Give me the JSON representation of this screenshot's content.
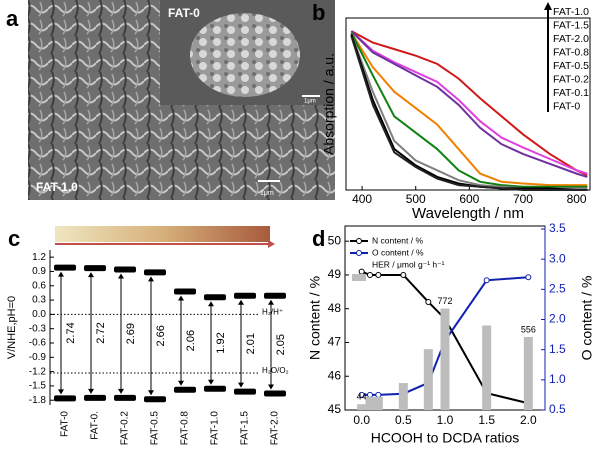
{
  "panel_labels": [
    "a",
    "b",
    "c",
    "d"
  ],
  "image": {
    "labels": [
      "FAT-0",
      "FAT-1.0"
    ],
    "scale_bars": [
      "1μm",
      "1μm"
    ]
  },
  "chart_data": [
    {
      "type": "line",
      "x_label": "Wavelength / nm",
      "y_label": "Absorption / a.u.",
      "x": [
        380,
        420,
        460,
        500,
        540,
        580,
        620,
        660,
        700,
        750,
        800,
        820
      ],
      "xlim": [
        370,
        825
      ],
      "xticks": [
        400,
        500,
        600,
        700,
        800
      ],
      "ylim": [
        0,
        1.05
      ],
      "series": [
        {
          "name": "FAT-1.0",
          "color": "#d01818",
          "values": [
            0.97,
            0.9,
            0.86,
            0.82,
            0.77,
            0.68,
            0.56,
            0.45,
            0.34,
            0.22,
            0.12,
            0.09
          ]
        },
        {
          "name": "FAT-1.5",
          "color": "#e040e0",
          "values": [
            0.97,
            0.85,
            0.78,
            0.72,
            0.66,
            0.55,
            0.42,
            0.32,
            0.26,
            0.19,
            0.12,
            0.1
          ]
        },
        {
          "name": "FAT-2.0",
          "color": "#7030a0",
          "values": [
            0.97,
            0.84,
            0.77,
            0.7,
            0.63,
            0.52,
            0.38,
            0.28,
            0.22,
            0.16,
            0.1,
            0.08
          ]
        },
        {
          "name": "FAT-0.8",
          "color": "#f08000",
          "values": [
            0.96,
            0.75,
            0.6,
            0.5,
            0.4,
            0.25,
            0.1,
            0.05,
            0.04,
            0.03,
            0.03,
            0.03
          ]
        },
        {
          "name": "FAT-0.5",
          "color": "#108010",
          "values": [
            0.96,
            0.7,
            0.45,
            0.35,
            0.25,
            0.12,
            0.05,
            0.03,
            0.02,
            0.02,
            0.02,
            0.02
          ]
        },
        {
          "name": "FAT-0.2",
          "color": "#808080",
          "values": [
            0.95,
            0.6,
            0.3,
            0.18,
            0.12,
            0.06,
            0.03,
            0.02,
            0.01,
            0.01,
            0.01,
            0.01
          ]
        },
        {
          "name": "FAT-0.1",
          "color": "#000000",
          "values": [
            0.95,
            0.55,
            0.25,
            0.15,
            0.08,
            0.04,
            0.02,
            0.01,
            0.01,
            0.01,
            0.0,
            0.0
          ]
        },
        {
          "name": "FAT-0",
          "color": "#222222",
          "values": [
            0.94,
            0.52,
            0.23,
            0.14,
            0.07,
            0.03,
            0.02,
            0.01,
            0.0,
            0.0,
            0.0,
            0.0
          ]
        }
      ]
    },
    {
      "type": "band",
      "y_label": "V/NHE,pH=0",
      "categories": [
        "FAT-0",
        "FAT-0.",
        "FAT-0.2",
        "FAT-0.5",
        "FAT-0.8",
        "FAT-1.0",
        "FAT-1.5",
        "FAT-2.0"
      ],
      "values_top": [
        0.98,
        0.97,
        0.94,
        0.88,
        0.48,
        0.36,
        0.39,
        0.39
      ],
      "values_bottom": [
        -1.76,
        -1.75,
        -1.75,
        -1.78,
        -1.58,
        -1.56,
        -1.62,
        -1.66
      ],
      "gaps": [
        2.74,
        2.72,
        2.69,
        2.66,
        2.06,
        1.92,
        2.01,
        2.05
      ],
      "ylim": [
        -1.9,
        1.35
      ],
      "yticks": [
        1.2,
        0.9,
        0.6,
        0.3,
        {
          "value": 0,
          "label": "0.0"
        },
        -0.3,
        -0.6,
        -0.9,
        -1.2,
        -1.5,
        -1.8
      ],
      "ref_lines": [
        {
          "value": 0,
          "label": "H₂/H⁺"
        },
        {
          "value": -1.23,
          "label": "H₂O/O₂"
        }
      ]
    },
    {
      "type": "combo",
      "x_label": "HCOOH to DCDA ratios",
      "y_label": "N content / %",
      "y2_label": "O content / %",
      "x": [
        0,
        0.1,
        0.2,
        0.5,
        0.8,
        1.0,
        1.5,
        2.0
      ],
      "xlim": [
        -0.2,
        2.2
      ],
      "xticks": [
        {
          "value": 0,
          "label": "0.0"
        },
        0.5,
        {
          "value": 1,
          "label": "1.0"
        },
        1.5,
        {
          "value": 2,
          "label": "2.0"
        }
      ],
      "ylim": [
        45,
        50.45
      ],
      "yticks": [
        45,
        46,
        47,
        48,
        49,
        50
      ],
      "y2lim": [
        0.5,
        3.55
      ],
      "y2ticks": [
        0.5,
        {
          "value": 1,
          "label": "1.0"
        },
        1.5,
        {
          "value": 2,
          "label": "2.0"
        },
        2.5,
        {
          "value": 3,
          "label": "3.0"
        },
        3.5
      ],
      "y3lim": [
        0,
        1400
      ],
      "legend": "top-left",
      "series": [
        {
          "name": "N content / %",
          "color": "#000000",
          "values": [
            49.1,
            49.0,
            49.0,
            49.0,
            48.2,
            47.7,
            45.5,
            45.2
          ]
        },
        {
          "name": "O content / %",
          "color": "#1020b0",
          "axis": "y2",
          "values": [
            0.75,
            0.75,
            0.75,
            0.77,
            0.95,
            1.65,
            2.65,
            2.7
          ]
        },
        {
          "name": "HER / μmol g⁻¹ h⁻¹",
          "color": "#bdbdbd",
          "axis": "y3",
          "values": [
            44,
            100,
            100,
            205,
            463,
            772,
            643,
            556
          ],
          "value_labels": [
            "44",
            null,
            null,
            null,
            null,
            "772",
            null,
            "556"
          ]
        }
      ]
    }
  ]
}
